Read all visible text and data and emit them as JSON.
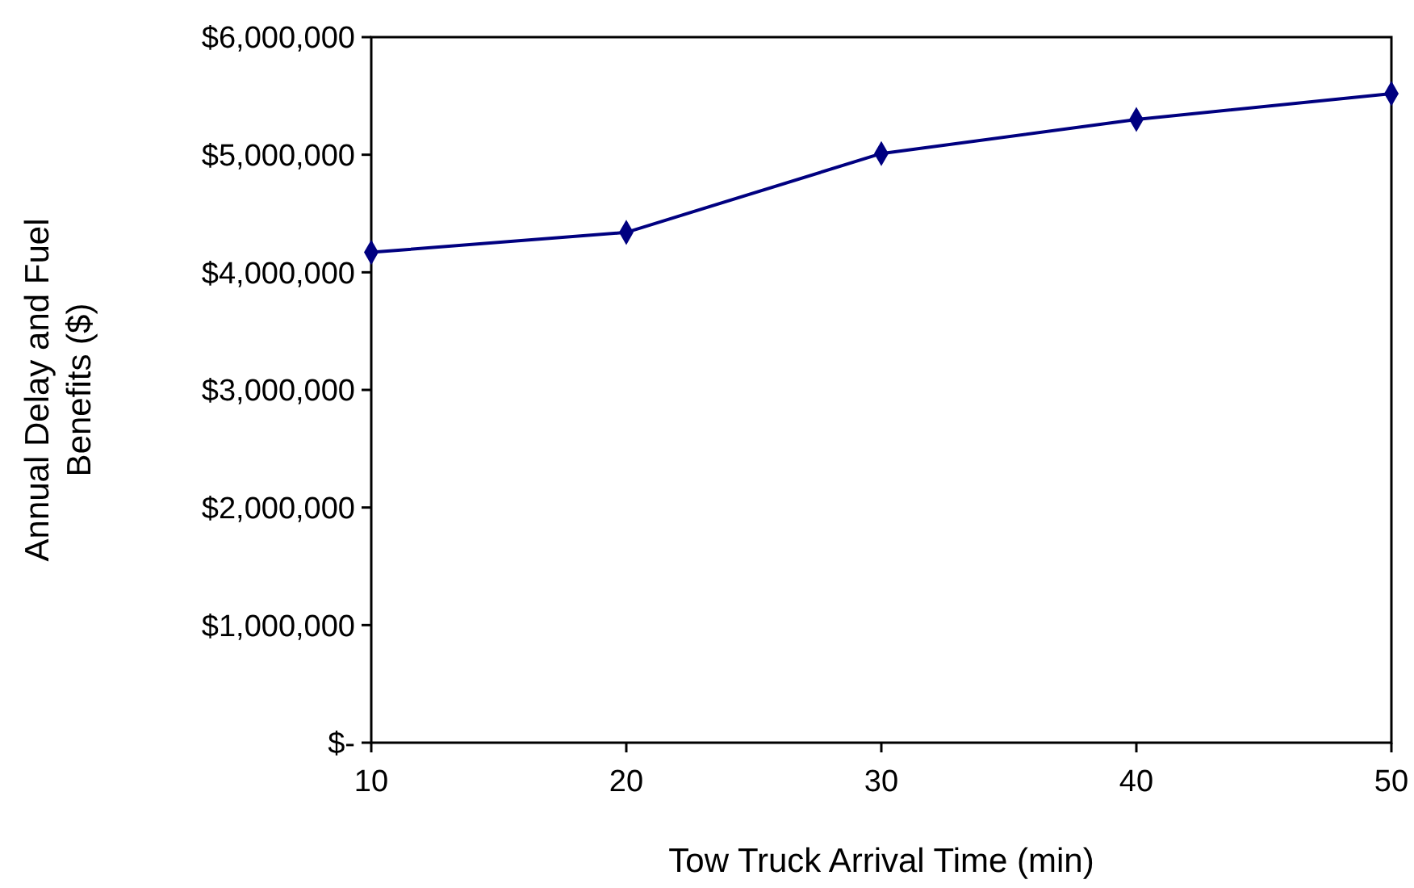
{
  "chart_data": {
    "type": "line",
    "xlabel": "Tow Truck Arrival Time (min)",
    "ylabel": "Annual Delay and Fuel Benefits ($)",
    "x": [
      10,
      20,
      30,
      40,
      50
    ],
    "series": [
      {
        "color": "#000080",
        "values": [
          4170000,
          4340000,
          5010000,
          5300000,
          5520000
        ]
      }
    ],
    "xlim": [
      10,
      50
    ],
    "xticks": [
      10,
      20,
      30,
      40,
      50
    ],
    "ylim": [
      0,
      6000000
    ],
    "yticks": [
      {
        "value": 0,
        "label": "$-"
      },
      {
        "value": 1000000,
        "label": "$1,000,000"
      },
      {
        "value": 2000000,
        "label": "$2,000,000"
      },
      {
        "value": 3000000,
        "label": "$3,000,000"
      },
      {
        "value": 4000000,
        "label": "$4,000,000"
      },
      {
        "value": 5000000,
        "label": "$5,000,000"
      },
      {
        "value": 6000000,
        "label": "$6,000,000"
      }
    ],
    "marker": "diamond",
    "line_style": "solid"
  }
}
